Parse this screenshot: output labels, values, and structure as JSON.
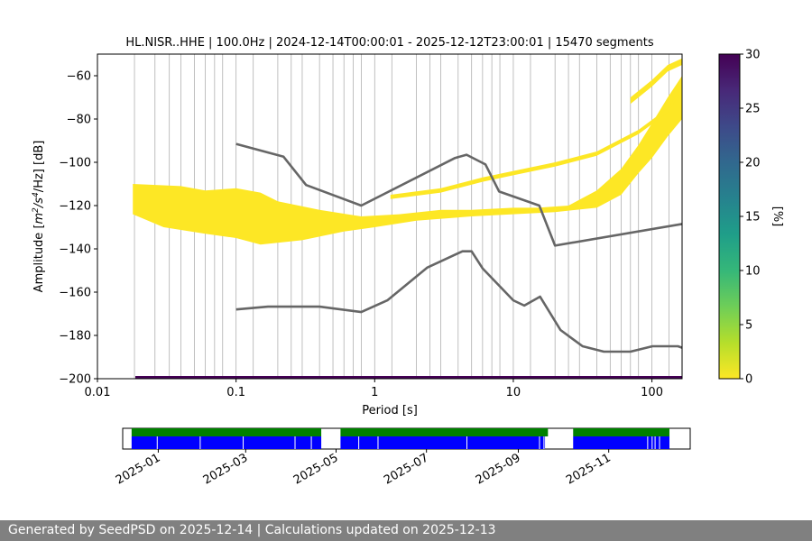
{
  "chart_data": {
    "type": "heatmap",
    "title": "HL.NISR..HHE | 100.0Hz | 2024-12-14T00:00:01 - 2025-12-12T23:00:01 | 15470 segments",
    "xlabel": "Period [s]",
    "ylabel": "Amplitude [m²/s⁴/Hz] [dB]",
    "ylabel_parts": {
      "prefix": "Amplitude [",
      "m": "m",
      "exp1": "2",
      "mid": "/s",
      "exp2": "4",
      "suffix": "/Hz] [dB]"
    },
    "x_scale": "log",
    "xlim": [
      0.01,
      165
    ],
    "ylim": [
      -200,
      -50
    ],
    "x_ticks": [
      {
        "value": 0.01,
        "label": "0.01"
      },
      {
        "value": 0.1,
        "label": "0.1"
      },
      {
        "value": 1,
        "label": "1"
      },
      {
        "value": 10,
        "label": "10"
      },
      {
        "value": 100,
        "label": "100"
      }
    ],
    "y_ticks": [
      {
        "value": -60,
        "label": "−60"
      },
      {
        "value": -80,
        "label": "−80"
      },
      {
        "value": -100,
        "label": "−100"
      },
      {
        "value": -120,
        "label": "−120"
      },
      {
        "value": -140,
        "label": "−140"
      },
      {
        "value": -160,
        "label": "−160"
      },
      {
        "value": -180,
        "label": "−180"
      },
      {
        "value": -200,
        "label": "−200"
      }
    ],
    "period_gridlines": [
      0.0185,
      0.026,
      0.033,
      0.04,
      0.05,
      0.06,
      0.07,
      0.08,
      0.1,
      0.133,
      0.2,
      0.25,
      0.3,
      0.4,
      0.5,
      0.6,
      0.7,
      0.8,
      1.0,
      1.33,
      2.0,
      2.5,
      3.0,
      4.0,
      5.0,
      6.0,
      7.0,
      8.0,
      10.0,
      13.3,
      20,
      25,
      30,
      40,
      50,
      60,
      70,
      80,
      100,
      133
    ],
    "grid": true,
    "nlnm": [
      [
        0.1,
        -168
      ],
      [
        0.17,
        -166.7
      ],
      [
        0.4,
        -166.7
      ],
      [
        0.8,
        -169.2
      ],
      [
        1.24,
        -163.7
      ],
      [
        2.4,
        -148.6
      ],
      [
        4.3,
        -141.1
      ],
      [
        5.0,
        -141.1
      ],
      [
        6.0,
        -149
      ],
      [
        10.0,
        -163.8
      ],
      [
        12.0,
        -166.2
      ],
      [
        15.6,
        -162.1
      ],
      [
        21.9,
        -177.5
      ],
      [
        31.6,
        -185
      ],
      [
        45,
        -187.5
      ],
      [
        70,
        -187.5
      ],
      [
        101,
        -185
      ],
      [
        154,
        -185
      ],
      [
        165,
        -185.7
      ]
    ],
    "nhnm": [
      [
        0.1,
        -91.5
      ],
      [
        0.22,
        -97.4
      ],
      [
        0.32,
        -110.5
      ],
      [
        0.8,
        -120
      ],
      [
        3.8,
        -98
      ],
      [
        4.6,
        -96.5
      ],
      [
        6.3,
        -101
      ],
      [
        7.9,
        -113.5
      ],
      [
        15.4,
        -120
      ],
      [
        20,
        -138.5
      ],
      [
        165,
        -128.5
      ]
    ],
    "psd_bands": [
      {
        "name": "noise-floor-band",
        "top": [
          [
            0.018,
            -110
          ],
          [
            0.04,
            -111
          ],
          [
            0.06,
            -113
          ],
          [
            0.1,
            -112
          ],
          [
            0.15,
            -114
          ],
          [
            0.2,
            -118
          ],
          [
            0.4,
            -122
          ],
          [
            0.8,
            -125
          ],
          [
            1.5,
            -124
          ],
          [
            3,
            -122
          ],
          [
            5,
            -122
          ],
          [
            10,
            -121
          ],
          [
            15,
            -121
          ],
          [
            25,
            -120
          ],
          [
            40,
            -113
          ],
          [
            60,
            -103
          ],
          [
            80,
            -92
          ],
          [
            100,
            -82
          ],
          [
            130,
            -70
          ],
          [
            165,
            -60
          ]
        ],
        "bottom": [
          [
            0.018,
            -124
          ],
          [
            0.03,
            -130
          ],
          [
            0.06,
            -133
          ],
          [
            0.1,
            -135
          ],
          [
            0.15,
            -138
          ],
          [
            0.3,
            -136
          ],
          [
            0.6,
            -132
          ],
          [
            1,
            -130
          ],
          [
            2,
            -127
          ],
          [
            5,
            -125
          ],
          [
            10,
            -124
          ],
          [
            20,
            -123
          ],
          [
            40,
            -121
          ],
          [
            60,
            -115
          ],
          [
            80,
            -105
          ],
          [
            100,
            -98
          ],
          [
            130,
            -88
          ],
          [
            165,
            -80
          ]
        ]
      },
      {
        "name": "upper-mode-band",
        "top": [
          [
            1.3,
            -115
          ],
          [
            3,
            -112
          ],
          [
            6,
            -107
          ],
          [
            10,
            -104
          ],
          [
            20,
            -100
          ],
          [
            40,
            -95
          ],
          [
            80,
            -85
          ],
          [
            130,
            -75
          ],
          [
            165,
            -65
          ]
        ],
        "bottom": [
          [
            1.3,
            -117
          ],
          [
            3,
            -114
          ],
          [
            6,
            -109
          ],
          [
            10,
            -106
          ],
          [
            20,
            -102
          ],
          [
            40,
            -97
          ],
          [
            80,
            -87
          ],
          [
            130,
            -77
          ],
          [
            165,
            -67
          ]
        ]
      },
      {
        "name": "top-tail-band",
        "top": [
          [
            70,
            -70
          ],
          [
            100,
            -62
          ],
          [
            130,
            -55
          ],
          [
            165,
            -52
          ]
        ],
        "bottom": [
          [
            70,
            -73
          ],
          [
            100,
            -65
          ],
          [
            130,
            -58
          ],
          [
            165,
            -55
          ]
        ]
      }
    ],
    "colorbar": {
      "label": "[%]",
      "min": 0,
      "max": 30,
      "ticks": [
        0,
        5,
        10,
        15,
        20,
        25,
        30
      ],
      "colormap": [
        "#fde725",
        "#b5de2b",
        "#6ece58",
        "#35b779",
        "#1f9e89",
        "#26828e",
        "#31688e",
        "#3e4989",
        "#482878",
        "#440154"
      ]
    },
    "colors": {
      "band": "#fde725",
      "noise_model": "#666666",
      "grid": "#b0b0b0",
      "bottom_strip": "#440154"
    },
    "timeline": {
      "ticks": [
        {
          "value": "2025-01-01",
          "label": "2025-01"
        },
        {
          "value": "2025-03-01",
          "label": "2025-03"
        },
        {
          "value": "2025-05-01",
          "label": "2025-05"
        },
        {
          "value": "2025-07-01",
          "label": "2025-07"
        },
        {
          "value": "2025-09-01",
          "label": "2025-09"
        },
        {
          "value": "2025-11-01",
          "label": "2025-11"
        }
      ],
      "range": [
        "2024-12-08",
        "2025-12-26"
      ],
      "data_available": [
        [
          "2024-12-14",
          "2025-04-21"
        ],
        [
          "2025-05-04",
          "2025-09-21"
        ],
        [
          "2025-10-08",
          "2025-12-12"
        ]
      ],
      "psd_computed": [
        [
          "2024-12-14",
          "2025-04-21"
        ],
        [
          "2025-05-04",
          "2025-09-19"
        ],
        [
          "2025-10-08",
          "2025-12-12"
        ]
      ],
      "psd_gaps": [
        "2024-12-31",
        "2025-01-29",
        "2025-02-27",
        "2025-04-03",
        "2025-04-14",
        "2025-05-16",
        "2025-05-29",
        "2025-07-28",
        "2025-09-15",
        "2025-09-18",
        "2025-11-27",
        "2025-11-30",
        "2025-12-02",
        "2025-12-05"
      ],
      "colors": {
        "available": "#008000",
        "psd": "#0000ff"
      }
    }
  },
  "footer": {
    "text": "Generated by SeedPSD on 2025-12-14 | Calculations updated on 2025-12-13"
  }
}
